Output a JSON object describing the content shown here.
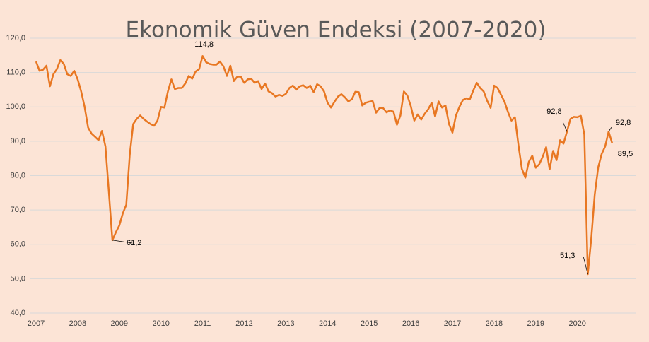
{
  "chart_data": {
    "type": "line",
    "title": "Ekonomik Güven Endeksi (2007-2020)",
    "categories": [
      "2007",
      null,
      null,
      null,
      null,
      null,
      null,
      null,
      null,
      null,
      null,
      null,
      "2008",
      null,
      null,
      null,
      null,
      null,
      null,
      null,
      null,
      null,
      null,
      null,
      "2009",
      null,
      null,
      null,
      null,
      null,
      null,
      null,
      null,
      null,
      null,
      null,
      "2010",
      null,
      null,
      null,
      null,
      null,
      null,
      null,
      null,
      null,
      null,
      null,
      "2011",
      null,
      null,
      null,
      null,
      null,
      null,
      null,
      null,
      null,
      null,
      null,
      "2012",
      null,
      null,
      null,
      null,
      null,
      null,
      null,
      null,
      null,
      null,
      null,
      "2013",
      null,
      null,
      null,
      null,
      null,
      null,
      null,
      null,
      null,
      null,
      null,
      "2014",
      null,
      null,
      null,
      null,
      null,
      null,
      null,
      null,
      null,
      null,
      null,
      "2015",
      null,
      null,
      null,
      null,
      null,
      null,
      null,
      null,
      null,
      null,
      null,
      "2016",
      null,
      null,
      null,
      null,
      null,
      null,
      null,
      null,
      null,
      null,
      null,
      "2017",
      null,
      null,
      null,
      null,
      null,
      null,
      null,
      null,
      null,
      null,
      null,
      "2018",
      null,
      null,
      null,
      null,
      null,
      null,
      null,
      null,
      null,
      null,
      null,
      "2019",
      null,
      null,
      null,
      null,
      null,
      null,
      null,
      null,
      null,
      null,
      null,
      "2020",
      null,
      null,
      null,
      null,
      null,
      null,
      null,
      null,
      null,
      null
    ],
    "series": [
      {
        "color": "#e87722",
        "values": [
          113.2,
          110.5,
          110.8,
          112,
          106,
          109.5,
          111,
          113.6,
          112.5,
          109.5,
          109,
          110.5,
          108,
          104.5,
          100,
          94,
          92.2,
          91.3,
          90.3,
          93,
          88.5,
          75,
          61.2,
          63.5,
          65.5,
          69,
          71.5,
          86,
          95,
          96.5,
          97.5,
          96.5,
          95.7,
          95,
          94.5,
          96,
          100,
          99.8,
          104.5,
          108,
          105.2,
          105.5,
          105.5,
          106.8,
          109,
          108.2,
          110.3,
          111,
          114.8,
          113,
          112.5,
          112.3,
          112.3,
          113.2,
          111.8,
          109,
          112,
          107.5,
          108.8,
          108.8,
          107,
          108,
          108.2,
          107,
          107.5,
          105.2,
          106.8,
          104.5,
          104,
          103,
          103.5,
          103.2,
          103.8,
          105.5,
          106.2,
          105,
          106,
          106.3,
          105.5,
          106.2,
          104.3,
          106.6,
          106,
          104.5,
          101.2,
          99.8,
          101.5,
          103,
          103.7,
          102.8,
          101.6,
          102.2,
          104.4,
          104.3,
          100.4,
          101.2,
          101.5,
          101.7,
          98.3,
          99.7,
          99.7,
          98.4,
          99,
          98.6,
          94.8,
          97.5,
          104.5,
          103.3,
          100.2,
          96,
          97.8,
          96.3,
          98,
          99.3,
          101.2,
          97.2,
          101.6,
          99.8,
          100.4,
          95,
          92.5,
          97.5,
          100,
          102,
          102.5,
          102.2,
          104.8,
          107,
          105.5,
          104.5,
          101.8,
          99.7,
          106.2,
          105.5,
          103.5,
          101.5,
          98.5,
          96,
          97,
          89,
          82,
          79.4,
          84,
          85.8,
          82.3,
          83.3,
          85.5,
          88.3,
          81.8,
          87.2,
          84.5,
          90.3,
          89.3,
          92.8,
          96.5,
          97.1,
          97,
          97.4,
          91.9,
          51.3,
          61.7,
          74.5,
          82.4,
          86.3,
          88.5,
          92.8,
          89.5
        ],
        "value_labels": [
          null,
          null,
          null,
          null,
          null,
          null,
          null,
          null,
          null,
          null,
          null,
          null,
          null,
          null,
          null,
          null,
          null,
          null,
          null,
          null,
          null,
          null,
          "61,2",
          null,
          null,
          null,
          null,
          null,
          null,
          null,
          null,
          null,
          null,
          null,
          null,
          null,
          null,
          null,
          null,
          null,
          null,
          null,
          null,
          null,
          null,
          null,
          null,
          null,
          "114,8",
          null,
          null,
          null,
          null,
          null,
          null,
          null,
          null,
          null,
          null,
          null,
          null,
          null,
          null,
          null,
          null,
          null,
          null,
          null,
          null,
          null,
          null,
          null,
          null,
          null,
          null,
          null,
          null,
          null,
          null,
          null,
          null,
          null,
          null,
          null,
          null,
          null,
          null,
          null,
          null,
          null,
          null,
          null,
          null,
          null,
          null,
          null,
          null,
          null,
          null,
          null,
          null,
          null,
          null,
          null,
          null,
          null,
          null,
          null,
          null,
          null,
          null,
          null,
          null,
          null,
          null,
          null,
          null,
          null,
          null,
          null,
          null,
          null,
          null,
          null,
          null,
          null,
          null,
          null,
          null,
          null,
          null,
          null,
          null,
          null,
          null,
          null,
          null,
          null,
          null,
          null,
          null,
          null,
          null,
          null,
          null,
          null,
          null,
          null,
          null,
          null,
          null,
          null,
          null,
          "92,8",
          null,
          null,
          null,
          null,
          null,
          "51,3",
          null,
          null,
          null,
          null,
          null,
          "92,8",
          "89,5"
        ]
      }
    ],
    "ylim": [
      40,
      120
    ],
    "yticks": [
      {
        "value": 40,
        "label": "40,0"
      },
      {
        "value": 50,
        "label": "50,0"
      },
      {
        "value": 60,
        "label": "60,0"
      },
      {
        "value": 70,
        "label": "70,0"
      },
      {
        "value": 80,
        "label": "80,0"
      },
      {
        "value": 90,
        "label": "90,0"
      },
      {
        "value": 100,
        "label": "100,0"
      },
      {
        "value": 110,
        "label": "110,0"
      },
      {
        "value": 120,
        "label": "120,0"
      }
    ],
    "grid": true
  }
}
